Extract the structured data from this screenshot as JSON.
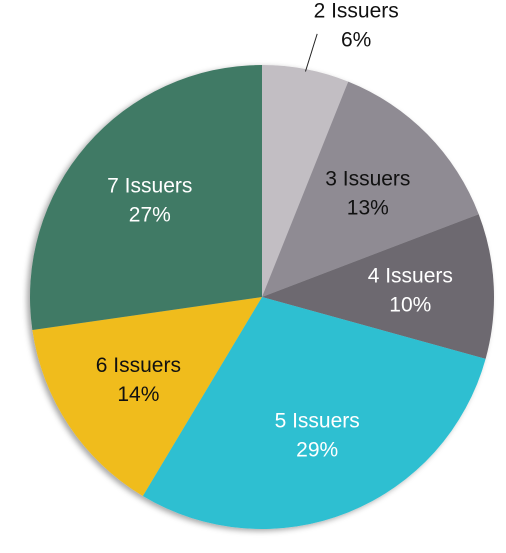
{
  "chart_data": {
    "type": "pie",
    "categories": [
      "2 Issuers",
      "3 Issuers",
      "4 Issuers",
      "5 Issuers",
      "6 Issuers",
      "7 Issuers"
    ],
    "values": [
      6,
      13,
      10,
      29,
      14,
      27
    ],
    "value_labels": [
      "6%",
      "13%",
      "10%",
      "29%",
      "14%",
      "27%"
    ],
    "colors": [
      "#c2bec3",
      "#8f8b93",
      "#6d6970",
      "#2dbfd1",
      "#f0bc1b",
      "#417a65"
    ]
  }
}
